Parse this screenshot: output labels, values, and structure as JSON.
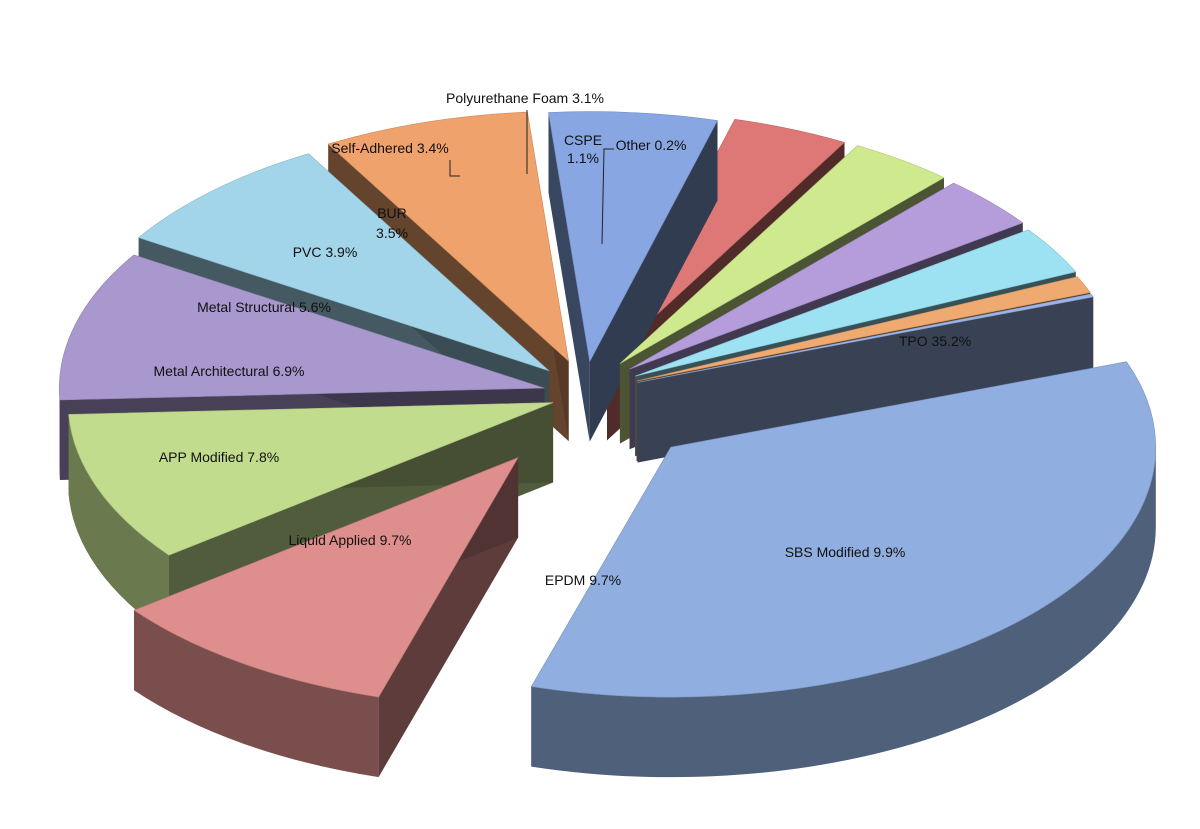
{
  "chart_data": {
    "type": "pie",
    "style": "exploded-3d",
    "legend": "none",
    "grid": false,
    "slices": [
      {
        "name": "TPO",
        "value": 35.2,
        "label_text": "TPO 35.2%",
        "color": "#90AEDF"
      },
      {
        "name": "SBS Modified",
        "value": 9.9,
        "label_text": "SBS Modified 9.9%",
        "color": "#DE8E8C"
      },
      {
        "name": "EPDM",
        "value": 9.7,
        "label_text": "EPDM 9.7%",
        "color": "#C2DC8E"
      },
      {
        "name": "Liquid Applied",
        "value": 9.7,
        "label_text": "Liquid Applied 9.7%",
        "color": "#A898CE"
      },
      {
        "name": "APP Modified",
        "value": 7.8,
        "label_text": "APP Modified 7.8%",
        "color": "#A2D5EA"
      },
      {
        "name": "Metal Architectural",
        "value": 6.9,
        "label_text": "Metal Architectural 6.9%",
        "color": "#EFA26C"
      },
      {
        "name": "Metal Structural",
        "value": 5.6,
        "label_text": "Metal Structural 5.6%",
        "color": "#88A6E2"
      },
      {
        "name": "PVC",
        "value": 3.9,
        "label_text": "PVC 3.9%",
        "color": "#DE7876"
      },
      {
        "name": "BUR",
        "value": 3.5,
        "label_lines": [
          "BUR",
          "3.5%"
        ],
        "color": "#CFEA8E"
      },
      {
        "name": "Self-Adhered",
        "value": 3.4,
        "label_text": "Self-Adhered 3.4%",
        "color": "#B59DDC"
      },
      {
        "name": "Polyurethane Foam",
        "value": 3.1,
        "label_text": "Polyurethane Foam 3.1%",
        "color": "#9CE2F2"
      },
      {
        "name": "CSPE",
        "value": 1.1,
        "label_lines": [
          "CSPE",
          "1.1%"
        ],
        "color": "#EFAA72"
      },
      {
        "name": "Other",
        "value": 0.2,
        "label_text": "Other 0.2%",
        "color": "#9CB6E8"
      }
    ]
  }
}
